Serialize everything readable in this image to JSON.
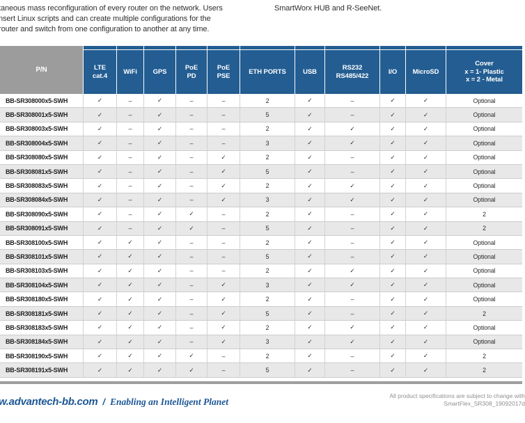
{
  "intro": {
    "left_lines": [
      "taneous mass reconfiguration of every router on the network. Users",
      "nsert Linux scripts and can create multiple configurations for the",
      "router and switch from one configuration to another at any time."
    ],
    "right_line": "SmartWorx HUB and R-SeeNet."
  },
  "table": {
    "header": [
      "P/N",
      "LTE\ncat.4",
      "WiFi",
      "GPS",
      "PoE\nPD",
      "PoE\nPSE",
      "ETH PORTS",
      "USB",
      "RS232\nRS485/422",
      "I/O",
      "MicroSD",
      "Cover\nx = 1- Plastic\nx = 2 - Metal"
    ],
    "rows": [
      {
        "pn": "BB-SR308000x5-SWH",
        "values": [
          "✓",
          "–",
          "✓",
          "–",
          "–",
          "2",
          "✓",
          "–",
          "✓",
          "✓",
          "Optional"
        ]
      },
      {
        "pn": "BB-SR308001x5-SWH",
        "values": [
          "✓",
          "–",
          "✓",
          "–",
          "–",
          "5",
          "✓",
          "–",
          "✓",
          "✓",
          "Optional"
        ]
      },
      {
        "pn": "BB-SR308003x5-SWH",
        "values": [
          "✓",
          "–",
          "✓",
          "–",
          "–",
          "2",
          "✓",
          "✓",
          "✓",
          "✓",
          "Optional"
        ]
      },
      {
        "pn": "BB-SR308004x5-SWH",
        "values": [
          "✓",
          "–",
          "✓",
          "–",
          "–",
          "3",
          "✓",
          "✓",
          "✓",
          "✓",
          "Optional"
        ]
      },
      {
        "pn": "BB-SR308080x5-SWH",
        "values": [
          "✓",
          "–",
          "✓",
          "–",
          "✓",
          "2",
          "✓",
          "–",
          "✓",
          "✓",
          "Optional"
        ]
      },
      {
        "pn": "BB-SR308081x5-SWH",
        "values": [
          "✓",
          "–",
          "✓",
          "–",
          "✓",
          "5",
          "✓",
          "–",
          "✓",
          "✓",
          "Optional"
        ]
      },
      {
        "pn": "BB-SR308083x5-SWH",
        "values": [
          "✓",
          "–",
          "✓",
          "–",
          "✓",
          "2",
          "✓",
          "✓",
          "✓",
          "✓",
          "Optional"
        ]
      },
      {
        "pn": "BB-SR308084x5-SWH",
        "values": [
          "✓",
          "–",
          "✓",
          "–",
          "✓",
          "3",
          "✓",
          "✓",
          "✓",
          "✓",
          "Optional"
        ]
      },
      {
        "pn": "BB-SR308090x5-SWH",
        "values": [
          "✓",
          "–",
          "✓",
          "✓",
          "–",
          "2",
          "✓",
          "–",
          "✓",
          "✓",
          "2"
        ]
      },
      {
        "pn": "BB-SR308091x5-SWH",
        "values": [
          "✓",
          "–",
          "✓",
          "✓",
          "–",
          "5",
          "✓",
          "–",
          "✓",
          "✓",
          "2"
        ]
      },
      {
        "pn": "BB-SR308100x5-SWH",
        "values": [
          "✓",
          "✓",
          "✓",
          "–",
          "–",
          "2",
          "✓",
          "–",
          "✓",
          "✓",
          "Optional"
        ]
      },
      {
        "pn": "BB-SR308101x5-SWH",
        "values": [
          "✓",
          "✓",
          "✓",
          "–",
          "–",
          "5",
          "✓",
          "–",
          "✓",
          "✓",
          "Optional"
        ]
      },
      {
        "pn": "BB-SR308103x5-SWH",
        "values": [
          "✓",
          "✓",
          "✓",
          "–",
          "–",
          "2",
          "✓",
          "✓",
          "✓",
          "✓",
          "Optional"
        ]
      },
      {
        "pn": "BB-SR308104x5-SWH",
        "values": [
          "✓",
          "✓",
          "✓",
          "–",
          "✓",
          "3",
          "✓",
          "✓",
          "✓",
          "✓",
          "Optional"
        ]
      },
      {
        "pn": "BB-SR308180x5-SWH",
        "values": [
          "✓",
          "✓",
          "✓",
          "–",
          "✓",
          "2",
          "✓",
          "–",
          "✓",
          "✓",
          "Optional"
        ]
      },
      {
        "pn": "BB-SR308181x5-SWH",
        "values": [
          "✓",
          "✓",
          "✓",
          "–",
          "✓",
          "5",
          "✓",
          "–",
          "✓",
          "✓",
          "2"
        ]
      },
      {
        "pn": "BB-SR308183x5-SWH",
        "values": [
          "✓",
          "✓",
          "✓",
          "–",
          "✓",
          "2",
          "✓",
          "✓",
          "✓",
          "✓",
          "Optional"
        ]
      },
      {
        "pn": "BB-SR308184x5-SWH",
        "values": [
          "✓",
          "✓",
          "✓",
          "–",
          "✓",
          "3",
          "✓",
          "✓",
          "✓",
          "✓",
          "Optional"
        ]
      },
      {
        "pn": "BB-SR308190x5-SWH",
        "values": [
          "✓",
          "✓",
          "✓",
          "✓",
          "–",
          "2",
          "✓",
          "–",
          "✓",
          "✓",
          "2"
        ]
      },
      {
        "pn": "BB-SR308191x5-SWH",
        "values": [
          "✓",
          "✓",
          "✓",
          "✓",
          "–",
          "5",
          "✓",
          "–",
          "✓",
          "✓",
          "2"
        ]
      }
    ]
  },
  "footer": {
    "website": "w.advantech-bb.com",
    "separator": "/",
    "tagline": "Enabling an Intelligent Planet",
    "note_line1": "All product specifications are subject to change with",
    "note_line2": "SmartFlex_SR308_19092017d"
  },
  "colors": {
    "header_blue": "#235d92",
    "header_gray": "#9c9c9c",
    "row_alt": "#e8e8e8",
    "footer_blue": "#1d5796",
    "divider_gray": "#9e9e9e"
  }
}
